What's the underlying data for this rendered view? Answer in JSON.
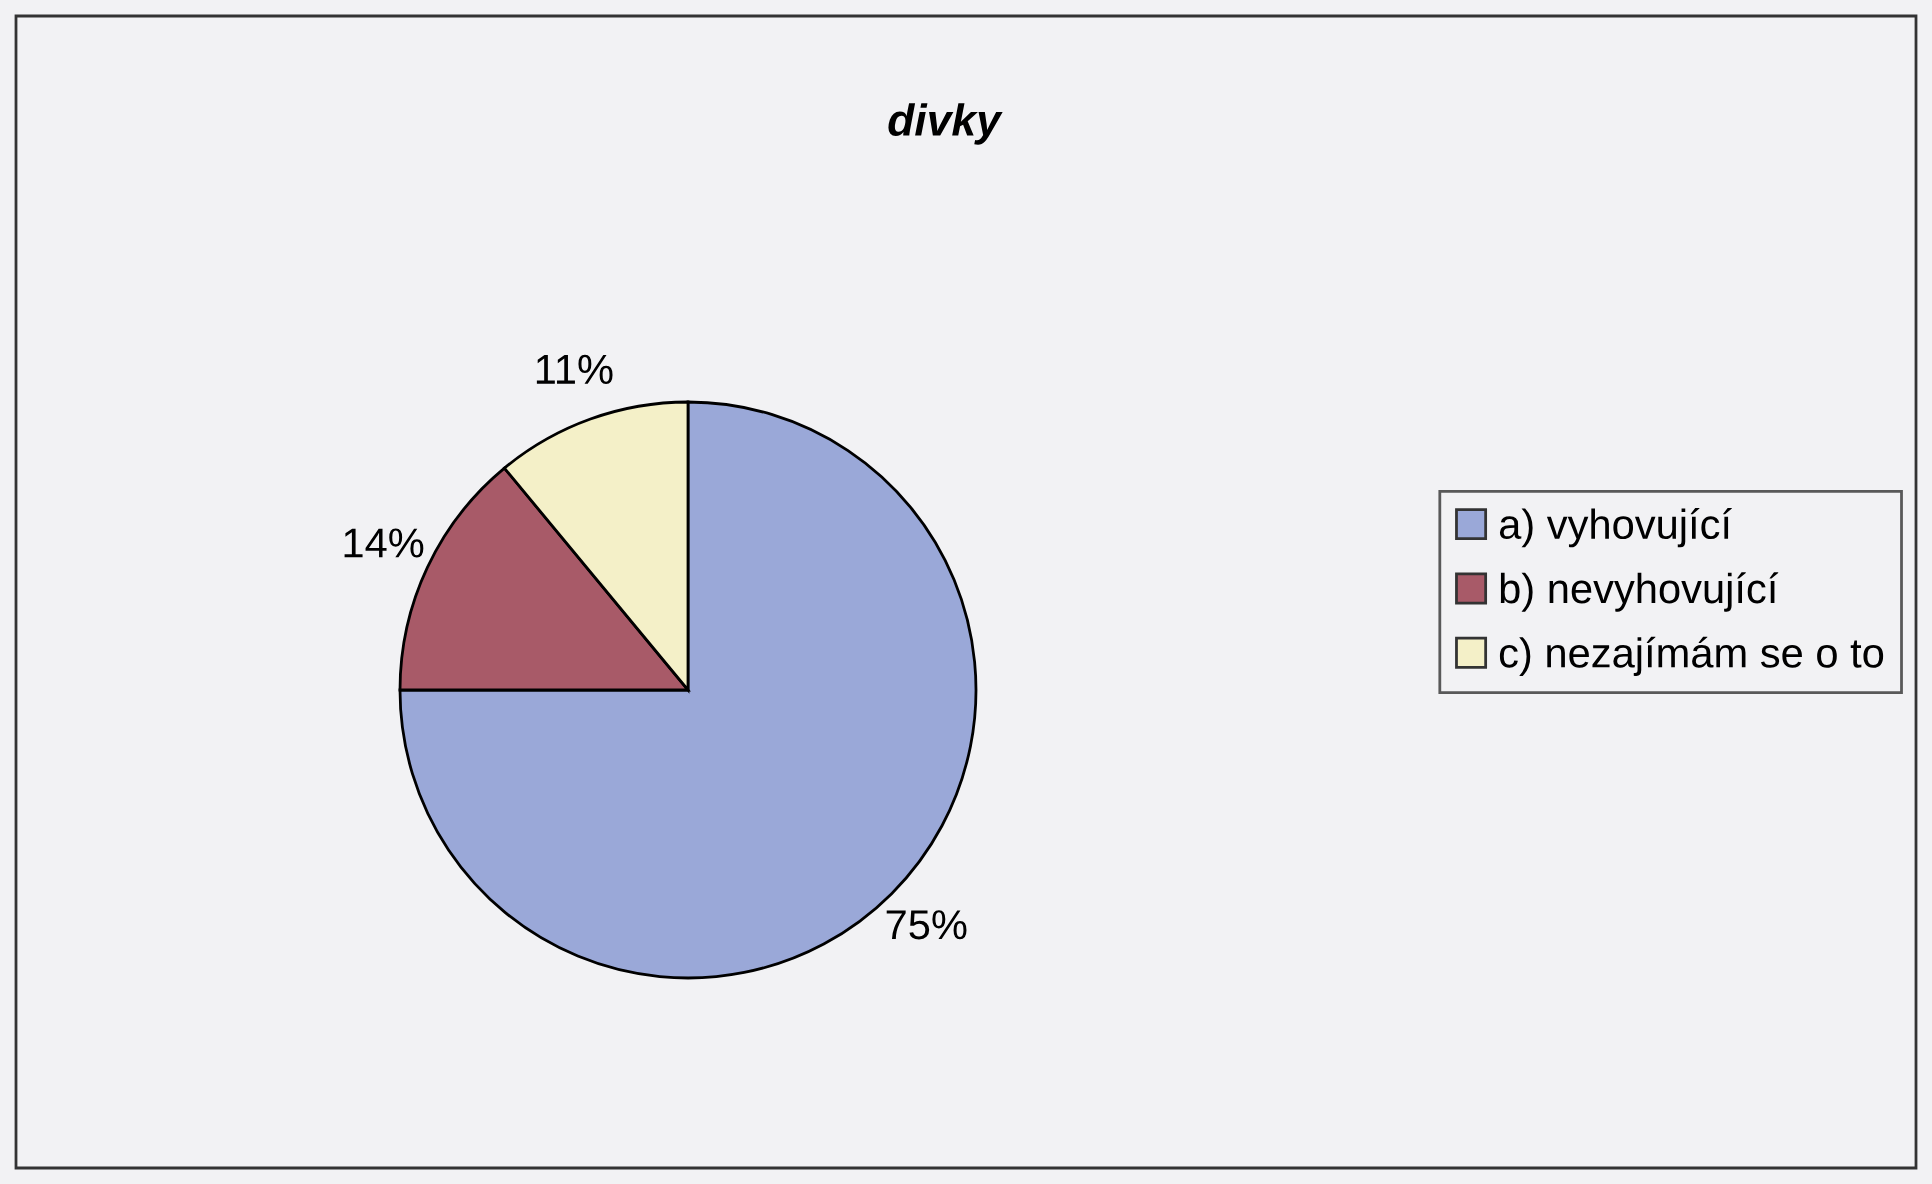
{
  "chart_data": {
    "type": "pie",
    "title": "divky",
    "categories": [
      "a) vyhovující",
      "b) nevyhovující",
      "c) nezajímám se o to"
    ],
    "values": [
      75,
      14,
      11
    ],
    "colors": [
      "#9aa8d8",
      "#a85a68",
      "#f4f0c8"
    ],
    "value_labels": [
      "75%",
      "14%",
      "11%"
    ],
    "legend": "right"
  }
}
